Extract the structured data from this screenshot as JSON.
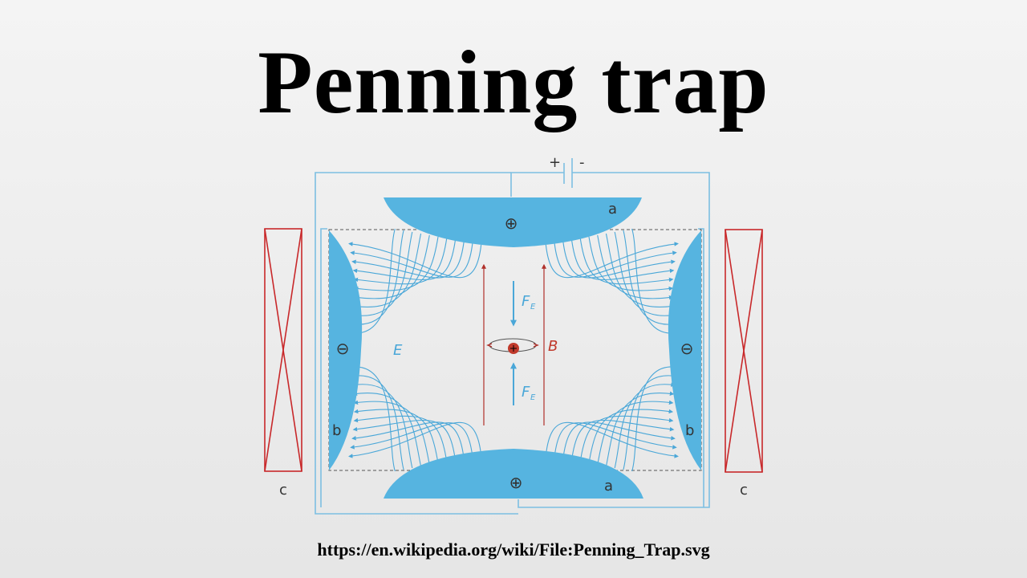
{
  "title": "Penning trap",
  "source_url": "https://en.wikipedia.org/wiki/File:Penning_Trap.svg",
  "diagram": {
    "battery": {
      "plus": "+",
      "minus": "-"
    },
    "electrode_a": {
      "label": "a",
      "charge_symbol": "⊕"
    },
    "electrode_b": {
      "label": "b",
      "charge_symbol": "⊖"
    },
    "coil": {
      "label": "c"
    },
    "field_E": "E",
    "field_B": "B",
    "force": {
      "symbol": "F",
      "subscript": "E"
    },
    "colors": {
      "electrode": "#56b4e0",
      "field_line": "#4aa7d8",
      "coil": "#c8282a",
      "magnetic_field": "#b0302a",
      "circuit": "#7cbfe2",
      "particle": "#c0392b"
    }
  }
}
